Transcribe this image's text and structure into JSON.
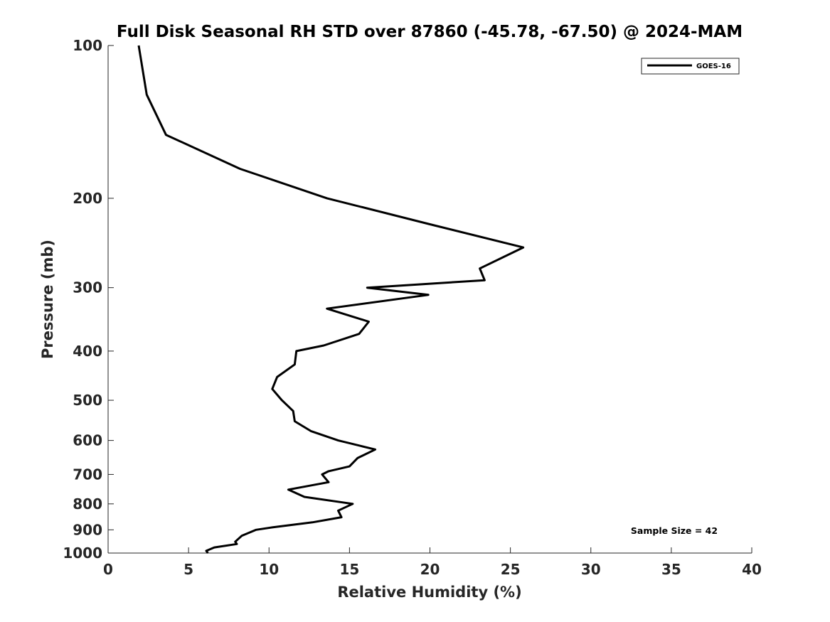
{
  "chart_data": {
    "type": "line",
    "title": "Full Disk Seasonal RH STD over 87860 (-45.78, -67.50) @ 2024-MAM",
    "xlabel": "Relative Humidity (%)",
    "ylabel": "Pressure (mb)",
    "xlim": [
      0,
      40
    ],
    "ylim": [
      100,
      1000
    ],
    "yscale": "log",
    "xticks": [
      0,
      5,
      10,
      15,
      20,
      25,
      30,
      35,
      40
    ],
    "yticks": [
      100,
      200,
      300,
      400,
      500,
      600,
      700,
      800,
      900,
      1000
    ],
    "grid": false,
    "legend_position": "top-right",
    "annotation": "Sample Size = 42",
    "series": [
      {
        "name": "GOES-16",
        "color": "#000000",
        "points": [
          [
            1.9,
            100
          ],
          [
            2.4,
            125
          ],
          [
            3.6,
            150
          ],
          [
            8.2,
            175
          ],
          [
            13.6,
            200
          ],
          [
            20.0,
            225
          ],
          [
            25.8,
            250
          ],
          [
            23.1,
            275
          ],
          [
            23.4,
            290
          ],
          [
            16.1,
            300
          ],
          [
            19.9,
            310
          ],
          [
            13.6,
            330
          ],
          [
            16.2,
            350
          ],
          [
            15.6,
            370
          ],
          [
            13.4,
            390
          ],
          [
            11.7,
            400
          ],
          [
            11.6,
            425
          ],
          [
            10.5,
            450
          ],
          [
            10.2,
            475
          ],
          [
            10.8,
            500
          ],
          [
            11.5,
            525
          ],
          [
            11.6,
            550
          ],
          [
            12.6,
            575
          ],
          [
            14.3,
            600
          ],
          [
            16.6,
            625
          ],
          [
            15.5,
            650
          ],
          [
            15.0,
            675
          ],
          [
            13.7,
            690
          ],
          [
            13.3,
            700
          ],
          [
            13.7,
            725
          ],
          [
            11.2,
            750
          ],
          [
            12.2,
            775
          ],
          [
            15.2,
            800
          ],
          [
            14.3,
            825
          ],
          [
            14.5,
            850
          ],
          [
            12.7,
            870
          ],
          [
            10.2,
            890
          ],
          [
            9.2,
            900
          ],
          [
            8.3,
            925
          ],
          [
            7.9,
            950
          ],
          [
            8.0,
            960
          ],
          [
            6.6,
            975
          ],
          [
            6.1,
            990
          ],
          [
            6.2,
            1000
          ]
        ]
      }
    ]
  }
}
